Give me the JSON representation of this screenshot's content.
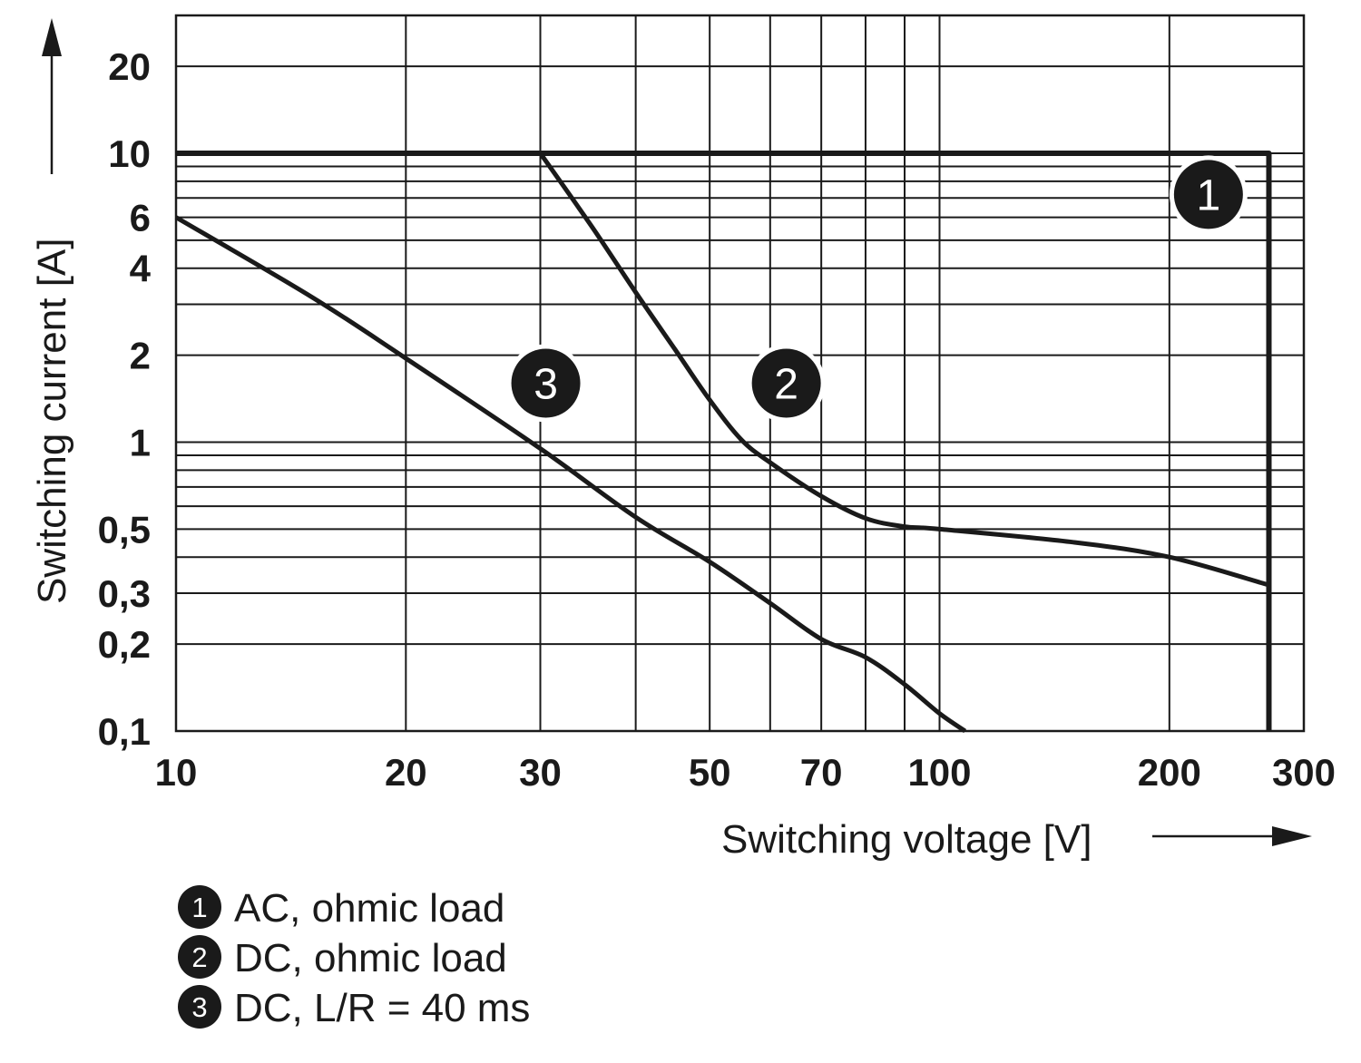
{
  "chart_data": {
    "type": "line",
    "xlabel": "Switching voltage [V]",
    "ylabel": "Switching current [A]",
    "x_scale": "log",
    "y_scale": "log",
    "xlim": [
      10,
      300
    ],
    "ylim": [
      0.1,
      30
    ],
    "grid": true,
    "x_ticks": [
      {
        "value": 10,
        "label": "10"
      },
      {
        "value": 20,
        "label": "20"
      },
      {
        "value": 30,
        "label": "30"
      },
      {
        "value": 50,
        "label": "50"
      },
      {
        "value": 70,
        "label": "70"
      },
      {
        "value": 100,
        "label": "100"
      },
      {
        "value": 200,
        "label": "200"
      },
      {
        "value": 300,
        "label": "300"
      }
    ],
    "y_ticks": [
      {
        "value": 20,
        "label": "20"
      },
      {
        "value": 10,
        "label": "10"
      },
      {
        "value": 6,
        "label": "6"
      },
      {
        "value": 4,
        "label": "4"
      },
      {
        "value": 2,
        "label": "2"
      },
      {
        "value": 1,
        "label": "1"
      },
      {
        "value": 0.5,
        "label": "0,5"
      },
      {
        "value": 0.3,
        "label": "0,3"
      },
      {
        "value": 0.2,
        "label": "0,2"
      },
      {
        "value": 0.1,
        "label": "0,1"
      }
    ],
    "x_grid": [
      20,
      30,
      40,
      50,
      60,
      70,
      80,
      90,
      100,
      200
    ],
    "y_grid": [
      0.2,
      0.3,
      0.4,
      0.5,
      0.6,
      0.7,
      0.8,
      0.9,
      1,
      2,
      3,
      4,
      5,
      6,
      7,
      8,
      9,
      10,
      20
    ],
    "legend_placement": "bottom-left",
    "series": [
      {
        "marker": "1",
        "name": "AC, ohmic load",
        "label_at": [
          225,
          7.2
        ],
        "points": [
          [
            10,
            10
          ],
          [
            270,
            10
          ],
          [
            270,
            0.1
          ]
        ]
      },
      {
        "marker": "2",
        "name": "DC, ohmic load",
        "label_at": [
          63,
          1.6
        ],
        "points": [
          [
            30,
            10
          ],
          [
            35,
            5.6
          ],
          [
            40,
            3.3
          ],
          [
            45,
            2.1
          ],
          [
            50,
            1.4
          ],
          [
            55,
            1.02
          ],
          [
            60,
            0.85
          ],
          [
            70,
            0.65
          ],
          [
            80,
            0.545
          ],
          [
            90,
            0.51
          ],
          [
            100,
            0.5
          ],
          [
            150,
            0.45
          ],
          [
            200,
            0.4
          ],
          [
            270,
            0.32
          ]
        ]
      },
      {
        "marker": "3",
        "name": "DC, L/R = 40 ms",
        "label_at": [
          30.5,
          1.6
        ],
        "points": [
          [
            10,
            6
          ],
          [
            15,
            3.2
          ],
          [
            20,
            1.95
          ],
          [
            30,
            0.95
          ],
          [
            40,
            0.55
          ],
          [
            50,
            0.385
          ],
          [
            60,
            0.277
          ],
          [
            70,
            0.208
          ],
          [
            80,
            0.18
          ],
          [
            90,
            0.145
          ],
          [
            100,
            0.115
          ],
          [
            108,
            0.1
          ]
        ]
      }
    ]
  }
}
